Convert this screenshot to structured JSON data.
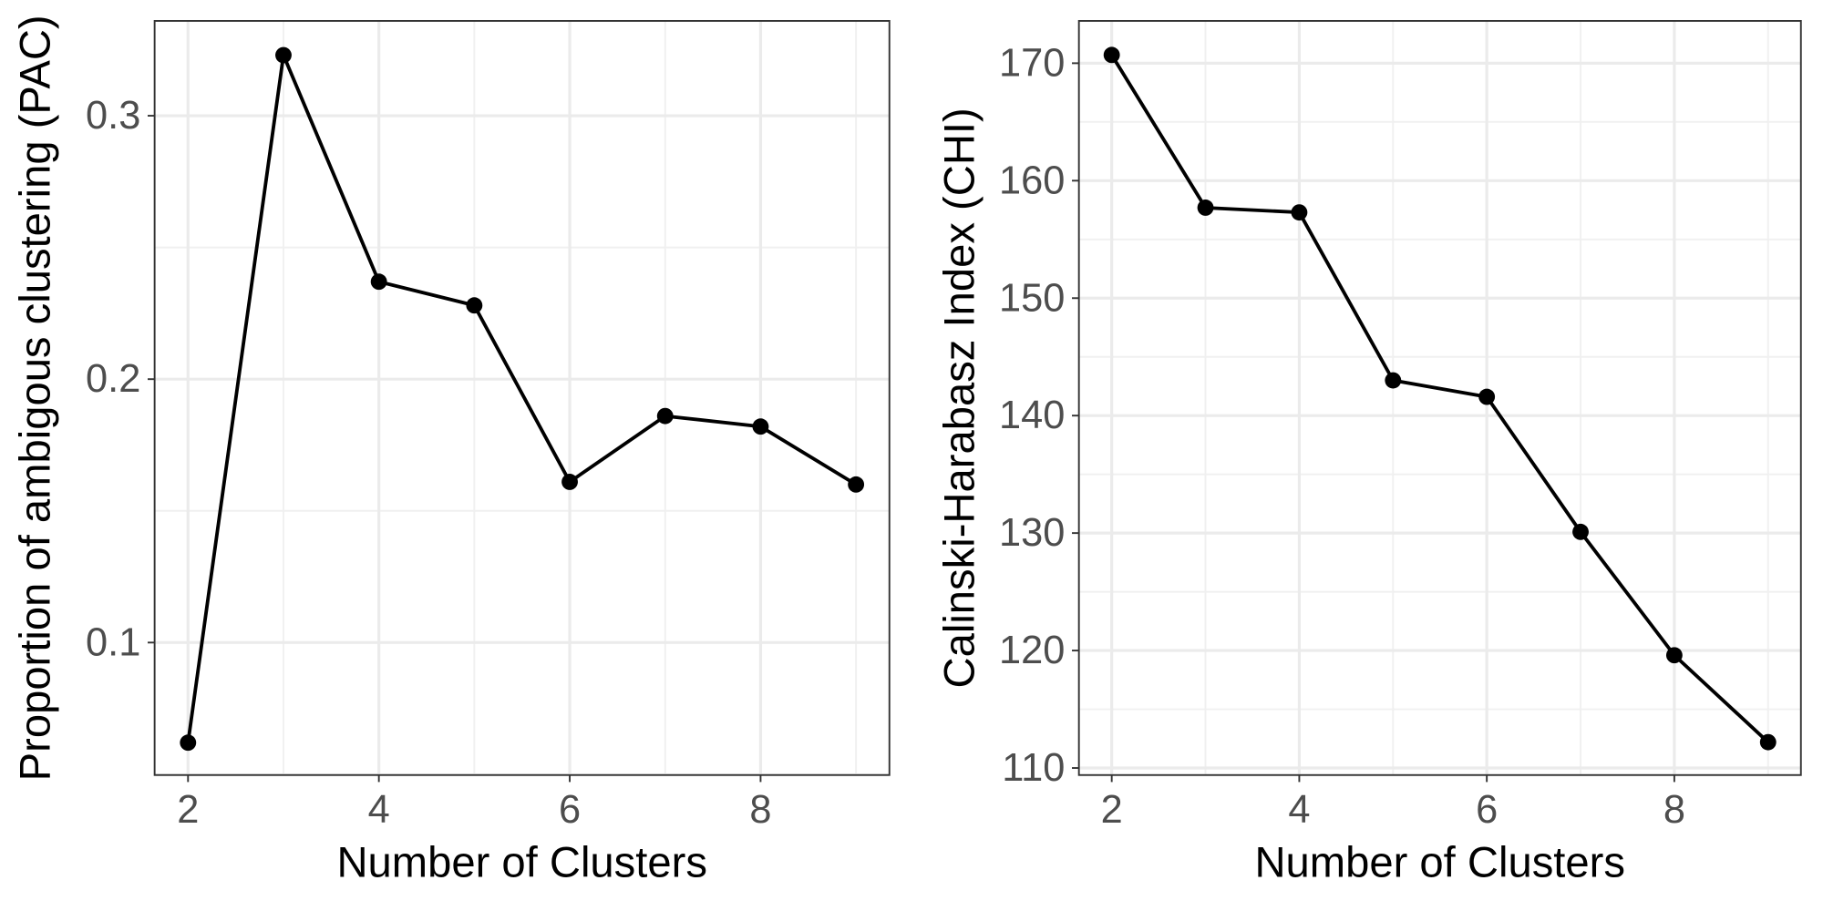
{
  "chart_data": [
    {
      "type": "line",
      "xlabel": "Number of Clusters",
      "ylabel": "Proportion of ambigous clustering (PAC)",
      "x": [
        2,
        3,
        4,
        5,
        6,
        7,
        8,
        9
      ],
      "values": [
        0.062,
        0.323,
        0.237,
        0.228,
        0.161,
        0.186,
        0.182,
        0.16
      ],
      "xlim": [
        1.65,
        9.35
      ],
      "ylim": [
        0.0497,
        0.336
      ],
      "xticks": [
        2,
        4,
        6,
        8
      ],
      "yticks": [
        0.1,
        0.2,
        0.3
      ],
      "color": "#000000",
      "grid": true
    },
    {
      "type": "line",
      "xlabel": "Number of Clusters",
      "ylabel": "Calinski-Harabasz Index (CHI)",
      "x": [
        2,
        3,
        4,
        5,
        6,
        7,
        8,
        9
      ],
      "values": [
        170.7,
        157.7,
        157.3,
        143.0,
        141.6,
        130.1,
        119.6,
        112.2
      ],
      "xlim": [
        1.65,
        9.35
      ],
      "ylim": [
        109.4,
        173.6
      ],
      "xticks": [
        2,
        4,
        6,
        8
      ],
      "yticks": [
        110,
        120,
        130,
        140,
        150,
        160,
        170
      ],
      "color": "#000000",
      "grid": true
    }
  ]
}
